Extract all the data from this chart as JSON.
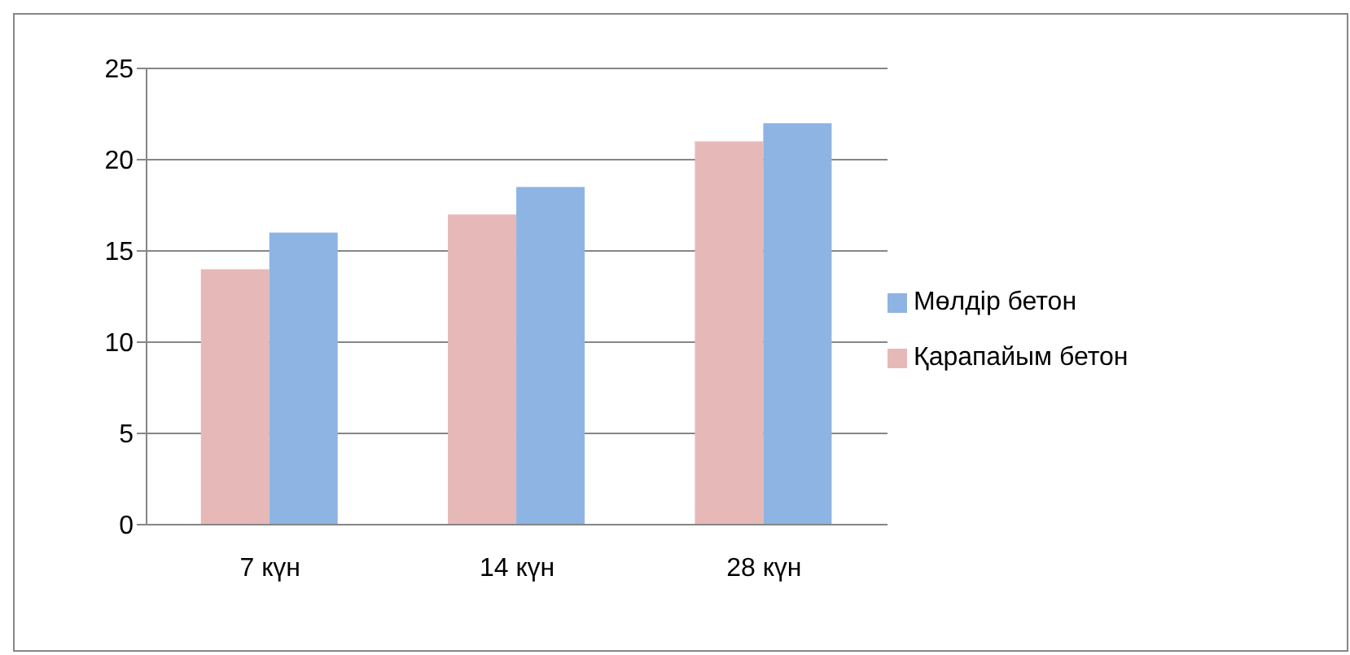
{
  "chart_data": {
    "type": "bar",
    "categories": [
      "7 күн",
      "14 күн",
      "28 күн"
    ],
    "series": [
      {
        "name": "Қарапайым бетон",
        "color": "#e6b9b8",
        "values": [
          14,
          17,
          21
        ]
      },
      {
        "name": "Мөлдір бетон",
        "color": "#8eb4e3",
        "values": [
          16,
          18.5,
          22
        ]
      }
    ],
    "ylim": [
      0,
      25
    ],
    "yticks": [
      0,
      5,
      10,
      15,
      20,
      25
    ],
    "grid": "y",
    "legend": "right"
  }
}
